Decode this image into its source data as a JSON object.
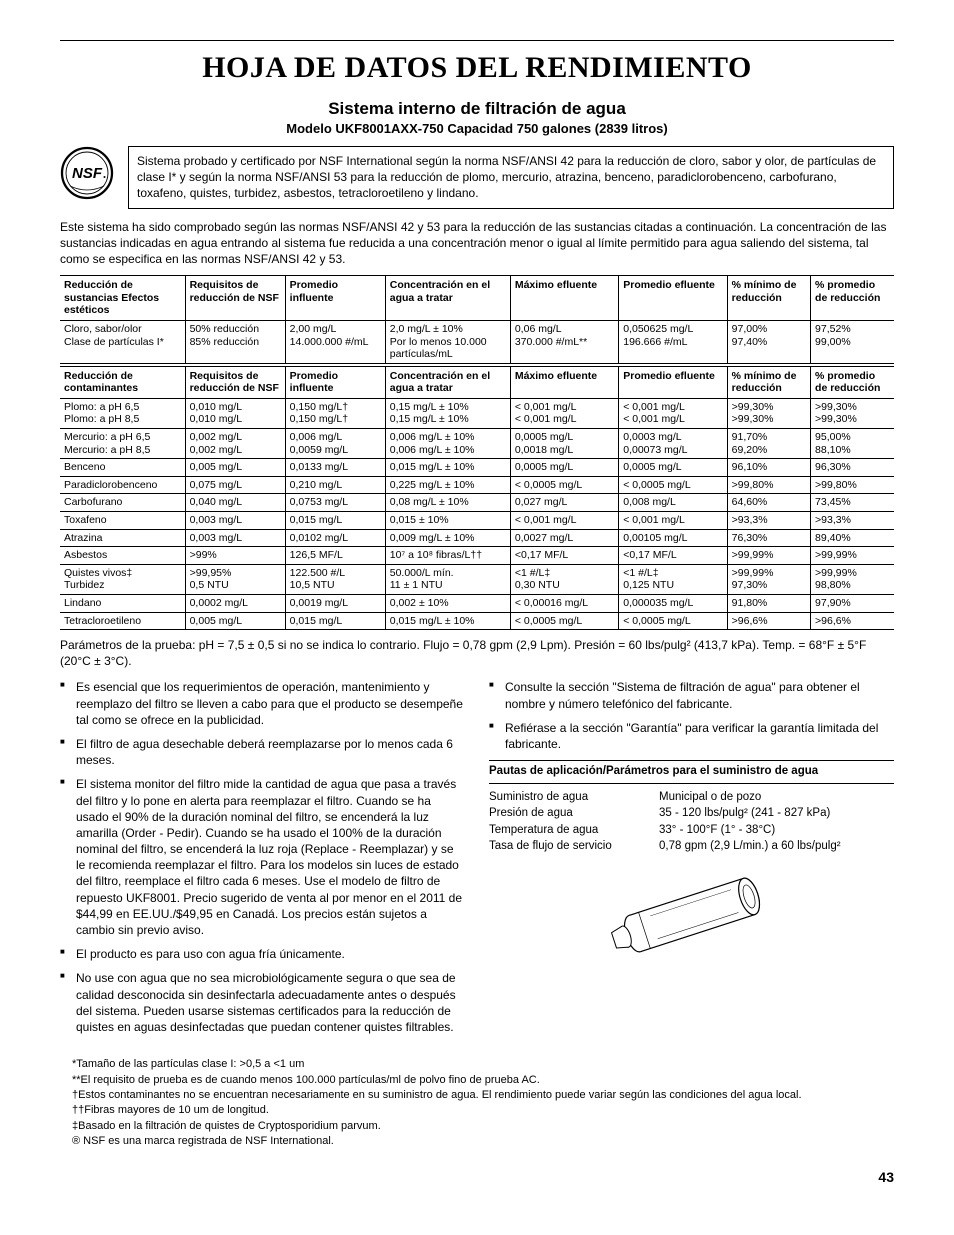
{
  "title": "HOJA DE DATOS DEL RENDIMIENTO",
  "subtitle": "Sistema interno de filtración de agua",
  "model_line": "Modelo UKF8001AXX-750 Capacidad 750 galones (2839 litros)",
  "intro_box": "Sistema probado y certificado por NSF International según la norma NSF/ANSI 42 para la reducción de cloro, sabor y olor, de partículas de clase I* y según la norma NSF/ANSI 53 para la reducción de plomo, mercurio, atrazina, benceno, paradiclorobenceno, carbofurano, toxafeno, quistes, turbidez, asbestos, tetracloroetileno y lindano.",
  "intro_p": "Este sistema ha sido comprobado según las normas NSF/ANSI 42 y 53 para la reducción de las sustancias citadas a continuación. La concentración de las sustancias indicadas en agua entrando al sistema fue reducida a una concentración menor o igual al límite permitido para agua saliendo del sistema, tal como se especifica en las normas NSF/ANSI 42 y 53.",
  "headers1": [
    "Reducción de sustancias Efectos estéticos",
    "Requisitos de reducción de NSF",
    "Promedio influente",
    "Concentración en el agua a tratar",
    "Máximo efluente",
    "Promedio efluente",
    "% mínimo de reducción",
    "% promedio de reducción"
  ],
  "rows1": [
    [
      "Cloro, sabor/olor\nClase de partículas I*",
      "50% reducción\n85% reducción",
      "2,00 mg/L\n14.000.000 #/mL",
      "2,0 mg/L ± 10%\nPor lo menos 10.000 partículas/mL",
      "0,06 mg/L\n370.000 #/mL**",
      "0,050625 mg/L\n196.666 #/mL",
      "97,00%\n97,40%",
      "97,52%\n99,00%"
    ]
  ],
  "headers2": [
    "Reducción de contaminantes",
    "Requisitos de reducción de NSF",
    "Promedio influente",
    "Concentración en el agua a tratar",
    "Máximo efluente",
    "Promedio efluente",
    "% mínimo de reducción",
    "% promedio de reducción"
  ],
  "rows2": [
    [
      "Plomo: a pH 6,5\nPlomo: a pH 8,5",
      "0,010 mg/L\n0,010 mg/L",
      "0,150 mg/L†\n0,150 mg/L†",
      "0,15 mg/L ± 10%\n0,15 mg/L ± 10%",
      "< 0,001 mg/L\n< 0,001 mg/L",
      "< 0,001 mg/L\n< 0,001 mg/L",
      ">99,30%\n>99,30%",
      ">99,30%\n>99,30%"
    ],
    [
      "Mercurio: a pH 6,5\nMercurio: a pH 8,5",
      "0,002 mg/L\n0,002 mg/L",
      "0,006 mg/L\n0,0059 mg/L",
      "0,006 mg/L ± 10%\n0,006 mg/L ± 10%",
      "0,0005 mg/L\n0,0018 mg/L",
      "0,0003 mg/L\n0,00073 mg/L",
      "91,70%\n69,20%",
      "95,00%\n88,10%"
    ],
    [
      "Benceno",
      "0,005 mg/L",
      "0,0133 mg/L",
      "0,015 mg/L ± 10%",
      "0,0005 mg/L",
      "0,0005 mg/L",
      "96,10%",
      "96,30%"
    ],
    [
      "Paradiclorobenceno",
      "0,075 mg/L",
      "0,210 mg/L",
      "0,225 mg/L ± 10%",
      "< 0,0005 mg/L",
      "< 0,0005 mg/L",
      ">99,80%",
      ">99,80%"
    ],
    [
      "Carbofurano",
      "0,040 mg/L",
      "0,0753 mg/L",
      "0,08 mg/L ± 10%",
      "0,027 mg/L",
      "0,008 mg/L",
      "64,60%",
      "73,45%"
    ],
    [
      "Toxafeno",
      "0,003 mg/L",
      "0,015 mg/L",
      "0,015 ± 10%",
      "< 0,001 mg/L",
      "< 0,001 mg/L",
      ">93,3%",
      ">93,3%"
    ],
    [
      "Atrazina",
      "0,003 mg/L",
      "0,0102 mg/L",
      "0,009 mg/L ± 10%",
      "0,0027 mg/L",
      "0,00105 mg/L",
      "76,30%",
      "89,40%"
    ],
    [
      "Asbestos",
      ">99%",
      "126,5 MF/L",
      "10⁷ a 10⁸ fibras/L††",
      "<0,17 MF/L",
      "<0,17 MF/L",
      ">99,99%",
      ">99,99%"
    ],
    [
      "Quistes vivos‡\nTurbidez",
      ">99,95%\n0,5 NTU",
      "122.500 #/L\n10,5 NTU",
      "50.000/L mín.\n11 ± 1 NTU",
      "<1 #/L‡\n0,30 NTU",
      "<1 #/L‡\n0,125 NTU",
      ">99,99%\n97,30%",
      ">99,99%\n98,80%"
    ],
    [
      "Lindano",
      "0,0002 mg/L",
      "0,0019 mg/L",
      "0,002 ± 10%",
      "< 0,00016 mg/L",
      "0,000035 mg/L",
      "91,80%",
      "97,90%"
    ],
    [
      "Tetracloroetileno",
      "0,005 mg/L",
      "0,015 mg/L",
      "0,015 mg/L ± 10%",
      "< 0,0005 mg/L",
      "< 0,0005 mg/L",
      ">96,6%",
      ">96,6%"
    ]
  ],
  "params": "Parámetros de la prueba: pH = 7,5 ± 0,5 si no se indica lo contrario. Flujo = 0,78 gpm (2,9 Lpm). Presión = 60 lbs/pulg² (413,7 kPa). Temp. = 68°F ± 5°F (20°C ± 3°C).",
  "bullets": [
    "Es esencial que los requerimientos de operación, mantenimiento y reemplazo del filtro se lleven a cabo para que el producto se desempeñe tal como se ofrece en la publicidad.",
    "El filtro de agua desechable deberá reemplazarse por lo menos cada 6 meses.",
    "El sistema monitor del filtro mide la cantidad de agua que pasa a través del filtro y lo pone en alerta para reemplazar el filtro. Cuando se ha usado el 90% de la duración nominal del filtro, se encenderá la luz amarilla (Order - Pedir). Cuando se ha usado el 100% de la duración nominal del filtro, se encenderá la luz roja (Replace - Reemplazar) y se le recomienda reemplazar el filtro. Para los modelos sin luces de estado del filtro, reemplace el filtro cada 6 meses. Use el modelo de filtro de repuesto UKF8001. Precio sugerido de venta al por menor en el 2011 de $44,99 en EE.UU./$49,95 en Canadá. Los precios están sujetos a cambio sin previo aviso.",
    "El producto es para uso con agua fría únicamente.",
    "No use con agua que no sea microbiológicamente segura o que sea de calidad desconocida sin desinfectarla adecuadamente antes o después del sistema. Pueden usarse sistemas certificados para la reducción de quistes en aguas desinfectadas que puedan contener quistes filtrables.",
    "Consulte la sección \"Sistema de filtración de agua\" para obtener el nombre y número telefónico del fabricante.",
    "Refiérase a la sección \"Garantía\" para verificar la garantía limitada del fabricante."
  ],
  "guidelines_head": "Pautas de aplicación/Parámetros para el suministro de agua",
  "guidelines": [
    [
      "Suministro de agua",
      "Municipal o de pozo"
    ],
    [
      "Presión de agua",
      "35 - 120 lbs/pulg² (241 - 827 kPa)"
    ],
    [
      "Temperatura de agua",
      "33° - 100°F (1° - 38°C)"
    ],
    [
      "Tasa de flujo de servicio",
      "0,78 gpm (2,9 L/min.) a 60 lbs/pulg²"
    ]
  ],
  "footnotes": [
    "*Tamaño de las partículas clase I: >0,5 a <1 um",
    "**El requisito de prueba es de cuando menos 100.000 partículas/ml de polvo fino de prueba AC.",
    "†Estos contaminantes no se encuentran necesariamente en su suministro de agua. El rendimiento puede variar según las condiciones del agua local.",
    "††Fibras mayores de 10 um de longitud.",
    "‡Basado en la filtración de quistes de Cryptosporidium parvum.",
    "® NSF es una marca registrada de NSF International."
  ],
  "page_number": "43",
  "col_widths": [
    "15%",
    "12%",
    "12%",
    "15%",
    "13%",
    "13%",
    "10%",
    "10%"
  ]
}
